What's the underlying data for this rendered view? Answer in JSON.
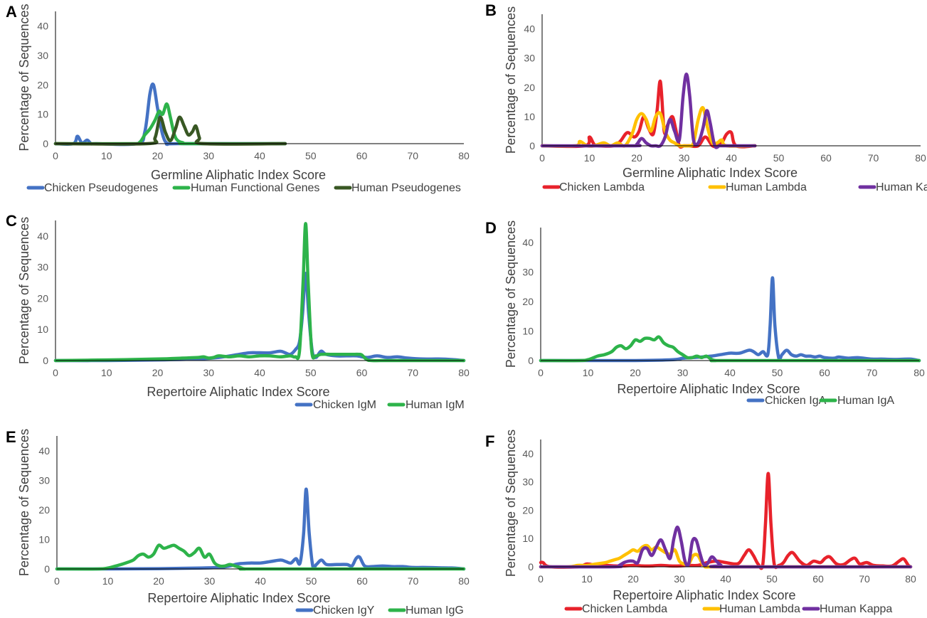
{
  "colors": {
    "chicken_blue": "#4472C4",
    "human_green": "#2DB34A",
    "human_pseudo": "#385723",
    "chicken_red": "#E8222B",
    "human_lambda_yellow": "#FFC000",
    "human_kappa_purple": "#7030A0",
    "axis": "#000000"
  },
  "chart_data": [
    {
      "panel": "A",
      "type": "line",
      "xlabel": "Germline Aliphatic Index Score",
      "ylabel": "Percentage of Sequences",
      "xlim": [
        0,
        80
      ],
      "ylim": [
        0,
        45
      ],
      "xticks": [
        0,
        10,
        20,
        30,
        40,
        50,
        60,
        70,
        80
      ],
      "yticks": [
        0,
        10,
        20,
        30,
        40
      ],
      "legend_position": "bottom",
      "series": [
        {
          "name": "Chicken Pseudogenes",
          "color": "#4472C4",
          "x": [
            0,
            3.5,
            4.3,
            5.2,
            6.2,
            7,
            8,
            16,
            17.5,
            18.5,
            19.2,
            20,
            21,
            22,
            24,
            45
          ],
          "y": [
            0,
            0,
            2.5,
            0.2,
            1.2,
            0,
            0,
            0,
            4,
            17,
            20,
            12,
            3,
            0,
            0,
            0
          ]
        },
        {
          "name": "Human Functional Genes",
          "color": "#2DB34A",
          "x": [
            0,
            15,
            16.5,
            17.5,
            18.5,
            19.5,
            20.3,
            21,
            21.8,
            22.5,
            23.3,
            24,
            25,
            26,
            45
          ],
          "y": [
            0,
            0,
            0.5,
            3,
            5,
            8,
            11,
            10,
            13.5,
            9,
            3,
            1,
            0.3,
            0,
            0
          ]
        },
        {
          "name": "Human Pseudogenes",
          "color": "#385723",
          "x": [
            0,
            18,
            19.5,
            20.5,
            21.5,
            22.5,
            23.5,
            24.3,
            25.2,
            26,
            26.8,
            27.5,
            28.2,
            29,
            45
          ],
          "y": [
            0,
            0,
            2,
            9,
            4,
            1,
            5,
            9,
            6,
            3,
            4,
            6,
            2,
            0,
            0
          ]
        }
      ]
    },
    {
      "panel": "B",
      "type": "line",
      "xlabel": "Germline Aliphatic Index Score",
      "ylabel": "Percentage of Sequences",
      "xlim": [
        0,
        80
      ],
      "ylim": [
        0,
        45
      ],
      "xticks": [
        0,
        10,
        20,
        30,
        40,
        50,
        60,
        70,
        80
      ],
      "yticks": [
        0,
        10,
        20,
        30,
        40
      ],
      "legend_position": "bottom",
      "series": [
        {
          "name": "Chicken Lambda",
          "color": "#E8222B",
          "x": [
            0,
            9,
            10,
            11,
            12,
            15,
            16.5,
            18,
            19.5,
            20.5,
            21.5,
            22.5,
            23.5,
            24.3,
            25,
            25.8,
            26.5,
            27.5,
            28.2,
            29,
            30,
            31,
            33,
            34.5,
            36,
            37,
            38,
            39,
            40,
            41,
            45
          ],
          "y": [
            0,
            0,
            3,
            0.5,
            0,
            0,
            1.5,
            4.5,
            3,
            5,
            10,
            6,
            4,
            12,
            22,
            5,
            7,
            10,
            6,
            0,
            0,
            0,
            0,
            3,
            0,
            0,
            1,
            4,
            4.5,
            0,
            0
          ]
        },
        {
          "name": "Human Lambda",
          "color": "#FFC000",
          "x": [
            0,
            7,
            8,
            9.5,
            11,
            13,
            14.5,
            16,
            17.5,
            19,
            20,
            21,
            22,
            23,
            24,
            25,
            26,
            27,
            28,
            29,
            30,
            31,
            32,
            33,
            34,
            35,
            36,
            37,
            38,
            39,
            45
          ],
          "y": [
            0,
            0,
            1.5,
            0,
            0,
            1,
            0,
            1,
            0,
            4,
            9,
            11,
            9,
            5,
            10,
            11,
            5,
            2,
            1,
            0,
            0,
            0,
            1,
            9,
            13,
            6,
            1,
            1,
            2,
            0,
            0
          ]
        },
        {
          "name": "Human Kappa",
          "color": "#7030A0",
          "x": [
            0,
            19,
            20,
            21,
            22,
            23,
            24,
            25,
            26,
            27,
            28,
            29,
            29.8,
            30.5,
            31.2,
            32,
            33,
            34,
            34.8,
            35.5,
            36.5,
            37.5,
            38.5,
            45
          ],
          "y": [
            0,
            0,
            0.5,
            2.5,
            1,
            0,
            0,
            0,
            3,
            9,
            5,
            2,
            17,
            24.5,
            17,
            2,
            1,
            6,
            12,
            8,
            0,
            0,
            0,
            0
          ]
        }
      ]
    },
    {
      "panel": "C",
      "type": "line",
      "xlabel": "Repertoire Aliphatic Index Score",
      "ylabel": "Percentage of Sequences",
      "xlim": [
        0,
        80
      ],
      "ylim": [
        0,
        45
      ],
      "xticks": [
        0,
        10,
        20,
        30,
        40,
        50,
        60,
        70,
        80
      ],
      "yticks": [
        0,
        10,
        20,
        30,
        40
      ],
      "legend_position": "bottom-right",
      "series": [
        {
          "name": "Chicken IgM",
          "color": "#4472C4",
          "x": [
            0,
            10,
            20,
            28,
            32,
            36,
            38,
            40,
            42,
            44,
            45,
            46,
            47,
            47.8,
            48.4,
            49,
            49.6,
            50.3,
            51,
            52,
            53,
            55,
            57,
            59,
            61,
            63,
            65,
            67,
            69,
            72,
            75,
            78,
            80
          ],
          "y": [
            0,
            0,
            0.2,
            0.5,
            1,
            2,
            2.5,
            2.5,
            2.5,
            3,
            2.5,
            2,
            3.5,
            6,
            15,
            28,
            15,
            3,
            1,
            3,
            2,
            1.5,
            1.5,
            1.5,
            1,
            1.5,
            1,
            1.2,
            0.8,
            0.5,
            0.5,
            0.3,
            0
          ]
        },
        {
          "name": "Human IgM",
          "color": "#2DB34A",
          "x": [
            0,
            10,
            20,
            25,
            28,
            29,
            30,
            31,
            32,
            34,
            36,
            38,
            40,
            42,
            44,
            46,
            47,
            47.8,
            48.5,
            49,
            49.5,
            50.2,
            51,
            52,
            54,
            56,
            58,
            59.5,
            60,
            61,
            62,
            65,
            70,
            80
          ],
          "y": [
            0,
            0.2,
            0.5,
            0.8,
            1,
            1.2,
            0.8,
            1,
            1.5,
            1.2,
            1.5,
            1.2,
            1.5,
            1.5,
            1.2,
            1.5,
            1.2,
            3,
            25,
            44,
            25,
            3,
            1.5,
            2,
            2,
            2,
            2,
            2,
            1.8,
            0.3,
            0,
            0,
            0,
            0
          ]
        }
      ]
    },
    {
      "panel": "D",
      "type": "line",
      "xlabel": "Repertoire Aliphatic Index Score",
      "ylabel": "Percentage of Sequences",
      "xlim": [
        0,
        80
      ],
      "ylim": [
        0,
        45
      ],
      "xticks": [
        0,
        10,
        20,
        30,
        40,
        50,
        60,
        70,
        80
      ],
      "yticks": [
        0,
        10,
        20,
        30,
        40
      ],
      "legend_position": "bottom-right",
      "series": [
        {
          "name": "Chicken IgA",
          "color": "#4472C4",
          "x": [
            0,
            10,
            20,
            28,
            30,
            32,
            34,
            36,
            38,
            40,
            42,
            44,
            45,
            46,
            47,
            48,
            48.5,
            49,
            49.5,
            50.3,
            51,
            52,
            53,
            54,
            55,
            56,
            57,
            58,
            59,
            60,
            62,
            63,
            65,
            67,
            70,
            72,
            75,
            78,
            80
          ],
          "y": [
            0,
            0,
            0,
            0.3,
            0.8,
            1,
            1.2,
            1.5,
            2,
            2.5,
            2.5,
            3.5,
            3,
            2,
            3,
            2,
            12,
            28,
            12,
            1,
            2,
            3.5,
            2,
            1.5,
            2,
            1.5,
            1.5,
            1.2,
            1.5,
            1,
            0.8,
            1.2,
            0.8,
            1,
            0.5,
            0.5,
            0.4,
            0.5,
            0
          ]
        },
        {
          "name": "Human IgA",
          "color": "#2DB34A",
          "x": [
            0,
            8,
            10,
            12,
            13.5,
            15,
            16,
            17,
            18,
            19,
            20,
            21,
            22,
            23,
            24,
            25,
            26,
            27,
            28,
            29,
            30,
            31,
            32,
            33,
            34,
            35,
            36,
            37,
            40,
            80
          ],
          "y": [
            0,
            0,
            0.3,
            1.5,
            2,
            3,
            4.5,
            5,
            4,
            5,
            7,
            6.5,
            7.5,
            7.5,
            7,
            8,
            6,
            5,
            4.5,
            3,
            2,
            1,
            1,
            1.5,
            1,
            1.5,
            0.5,
            0,
            0,
            0
          ]
        }
      ]
    },
    {
      "panel": "E",
      "type": "line",
      "xlabel": "Repertoire Aliphatic Index Score",
      "ylabel": "Percentage of Sequences",
      "xlim": [
        0,
        80
      ],
      "ylim": [
        0,
        45
      ],
      "xticks": [
        0,
        10,
        20,
        30,
        40,
        50,
        60,
        70,
        80
      ],
      "yticks": [
        0,
        10,
        20,
        30,
        40
      ],
      "legend_position": "bottom-right",
      "series": [
        {
          "name": "Chicken IgY",
          "color": "#4472C4",
          "x": [
            0,
            10,
            20,
            28,
            32,
            34,
            35,
            36,
            38,
            40,
            42,
            44,
            45,
            46,
            47,
            47.8,
            48.5,
            49,
            49.6,
            50.3,
            51,
            52,
            53,
            55,
            57,
            58,
            58.8,
            59.5,
            60.5,
            62,
            64,
            66,
            68,
            70,
            72,
            75,
            78,
            80
          ],
          "y": [
            0,
            0,
            0.1,
            0.3,
            0.5,
            1,
            1.5,
            1.8,
            2,
            2,
            2.5,
            3,
            2.5,
            2,
            3.5,
            2,
            12,
            27,
            12,
            1,
            1.5,
            3,
            1.5,
            1.5,
            1.5,
            1,
            3.5,
            4,
            1,
            0.8,
            1,
            0.8,
            0.8,
            0.5,
            0.5,
            0.4,
            0.3,
            0
          ]
        },
        {
          "name": "Human IgG",
          "color": "#2DB34A",
          "x": [
            0,
            8,
            10,
            12,
            13.5,
            15,
            16,
            17,
            18,
            19,
            20,
            21,
            22,
            23,
            24,
            25,
            26,
            27,
            28,
            29,
            30,
            31,
            32,
            33,
            34,
            35,
            36,
            37,
            40,
            80
          ],
          "y": [
            0,
            0,
            0.3,
            1.2,
            2,
            3,
            4.5,
            5,
            4,
            5,
            8,
            7,
            7.5,
            8,
            7,
            6,
            4.5,
            5.5,
            7,
            4,
            5,
            2,
            1,
            1,
            1.5,
            1,
            0.5,
            0,
            0,
            0
          ]
        }
      ]
    },
    {
      "panel": "F",
      "type": "line",
      "xlabel": "Repertoire Aliphatic Index Score",
      "ylabel": "Percentage of Sequences",
      "xlim": [
        0,
        80
      ],
      "ylim": [
        0,
        45
      ],
      "xticks": [
        0,
        10,
        20,
        30,
        40,
        50,
        60,
        70,
        80
      ],
      "yticks": [
        0,
        10,
        20,
        30,
        40
      ],
      "legend_position": "bottom",
      "series": [
        {
          "name": "Chicken Lambda",
          "color": "#E8222B",
          "x": [
            0,
            0.5,
            2,
            8,
            10,
            12,
            14,
            16,
            18,
            20,
            22,
            24,
            26,
            28,
            30,
            32,
            34,
            36,
            38,
            40,
            42,
            43,
            44,
            45,
            46,
            47,
            48,
            48.6,
            49.2,
            49.8,
            50.5,
            51.5,
            52.5,
            53.5,
            54.5,
            56,
            57.5,
            59,
            60.5,
            61.5,
            62.5,
            64,
            65.5,
            67,
            68,
            69,
            70.5,
            72,
            74,
            76,
            77.5,
            78.5,
            79.5,
            80
          ],
          "y": [
            1.5,
            1.5,
            0,
            0,
            1,
            0.5,
            0.5,
            0.3,
            0.3,
            0.5,
            0.3,
            0.3,
            0.5,
            0.3,
            0.3,
            0.5,
            0.5,
            1.5,
            2,
            1.5,
            1,
            1.5,
            4,
            6,
            4,
            1,
            0.5,
            15,
            33,
            15,
            1,
            0.5,
            1.5,
            4,
            5,
            2,
            0.5,
            2,
            1.5,
            3,
            3.5,
            1,
            0.8,
            2.5,
            3,
            1,
            1.5,
            0.5,
            0.3,
            0.3,
            2,
            2.8,
            0.5,
            0
          ]
        },
        {
          "name": "Human Lambda",
          "color": "#FFC000",
          "x": [
            0,
            6,
            8,
            10,
            12,
            14,
            15,
            16,
            17,
            18,
            19,
            20,
            21,
            22,
            23,
            24,
            25,
            26,
            27,
            28,
            29,
            30,
            31,
            32,
            33,
            34,
            35,
            36,
            40,
            80
          ],
          "y": [
            0,
            0,
            0.5,
            0.5,
            1,
            1.5,
            2,
            2.5,
            3,
            4,
            5,
            6,
            5.5,
            7,
            7.5,
            6,
            7,
            6,
            5,
            4.5,
            6,
            2,
            1,
            1,
            4,
            4,
            1,
            0,
            0,
            0
          ]
        },
        {
          "name": "Human Kappa",
          "color": "#7030A0",
          "x": [
            0,
            16,
            17,
            18,
            19,
            20,
            21,
            22,
            23,
            24,
            25,
            26,
            27,
            28,
            28.8,
            29.6,
            30.4,
            31.2,
            32,
            32.8,
            33.6,
            34.4,
            35.2,
            36,
            37,
            38,
            39,
            40,
            80
          ],
          "y": [
            0,
            0,
            0.5,
            1.5,
            2,
            2,
            1.5,
            6,
            6.5,
            4,
            7,
            9.5,
            6,
            3,
            10,
            14,
            9,
            2,
            1,
            9,
            9.5,
            5,
            1,
            1,
            3.5,
            2,
            0.5,
            0,
            0
          ]
        }
      ]
    }
  ]
}
